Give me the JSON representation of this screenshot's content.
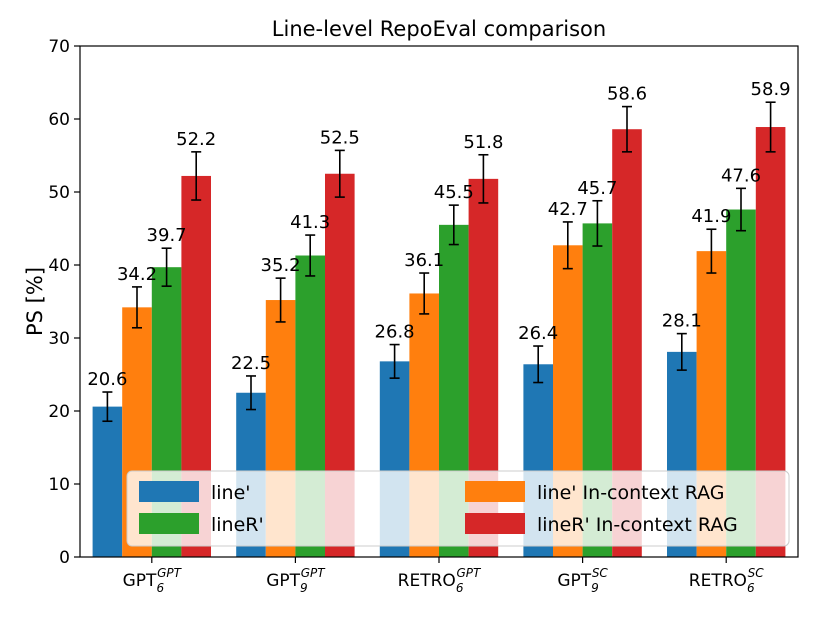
{
  "chart_data": {
    "type": "bar",
    "title": "Line-level RepoEval comparison",
    "xlabel": "",
    "ylabel": "PS [%]",
    "ylim": [
      0,
      70
    ],
    "yticks": [
      0,
      10,
      20,
      30,
      40,
      50,
      60,
      70
    ],
    "categories": [
      {
        "base": "GPT",
        "sub": "6",
        "sup": "GPT"
      },
      {
        "base": "GPT",
        "sub": "9",
        "sup": "GPT"
      },
      {
        "base": "RETRO",
        "sub": "6",
        "sup": "GPT"
      },
      {
        "base": "GPT",
        "sub": "9",
        "sup": "SC"
      },
      {
        "base": "RETRO",
        "sub": "6",
        "sup": "SC"
      }
    ],
    "series": [
      {
        "name": "line'",
        "color": "#1f77b4",
        "values": [
          20.6,
          22.5,
          26.8,
          26.4,
          28.1
        ],
        "errors": [
          2.0,
          2.3,
          2.3,
          2.5,
          2.5
        ]
      },
      {
        "name": "line' In-context RAG",
        "color": "#ff7f0e",
        "values": [
          34.2,
          35.2,
          36.1,
          42.7,
          41.9
        ],
        "errors": [
          2.8,
          3.0,
          2.8,
          3.2,
          3.0
        ]
      },
      {
        "name": "lineR'",
        "color": "#2ca02c",
        "values": [
          39.7,
          41.3,
          45.5,
          45.7,
          47.6
        ],
        "errors": [
          2.6,
          2.8,
          2.7,
          3.1,
          2.9
        ]
      },
      {
        "name": "lineR' In-context RAG",
        "color": "#d62728",
        "values": [
          52.2,
          52.5,
          51.8,
          58.6,
          58.9
        ],
        "errors": [
          3.3,
          3.2,
          3.3,
          3.1,
          3.4
        ]
      }
    ],
    "legend": {
      "location": "lower-center",
      "columns": 2
    },
    "grid": false
  }
}
